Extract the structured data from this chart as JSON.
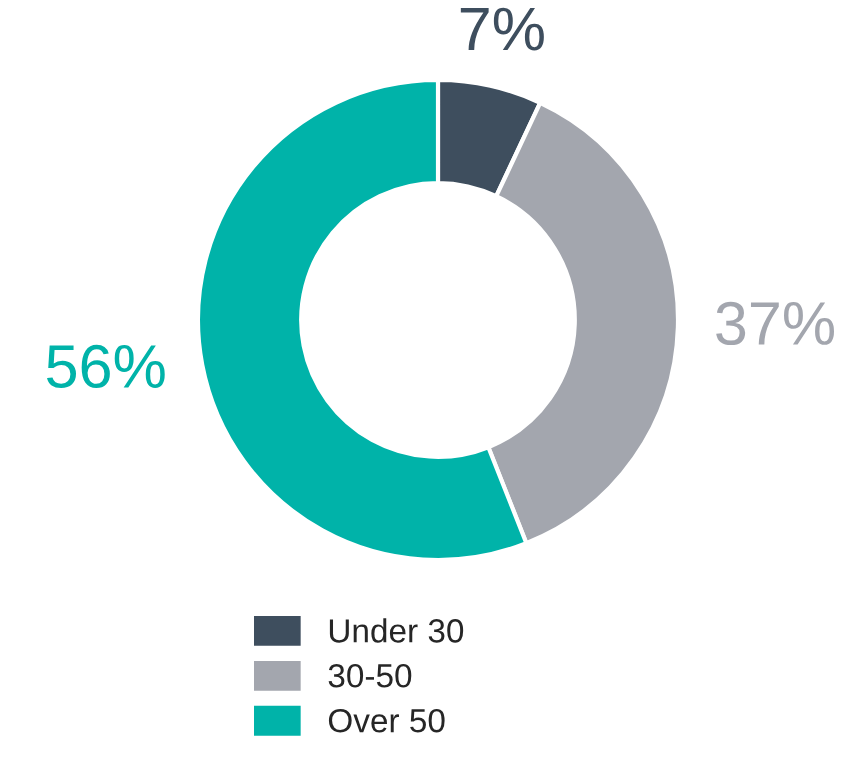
{
  "chart_data": {
    "type": "donut",
    "categories": [
      "Under 30",
      "30-50",
      "Over 50"
    ],
    "values": [
      7,
      37,
      56
    ],
    "colors": [
      "#3e4e5e",
      "#a3a6ae",
      "#00b3a9"
    ],
    "value_labels": [
      "7%",
      "37%",
      "56%"
    ],
    "legend": "bottom"
  }
}
